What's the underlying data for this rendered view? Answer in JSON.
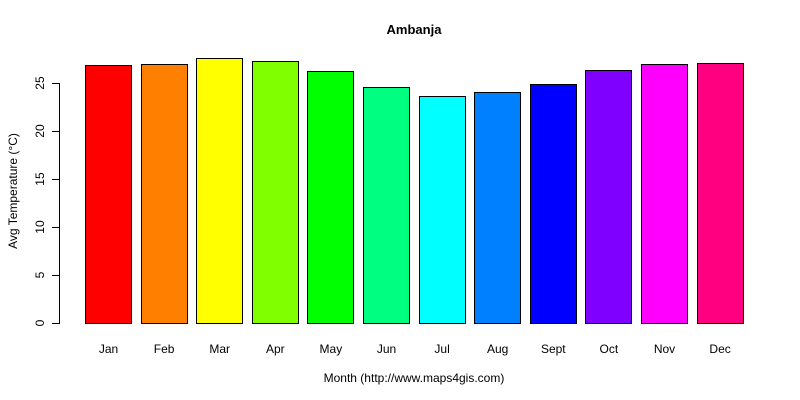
{
  "chart_data": {
    "type": "bar",
    "title": "Ambanja",
    "xlabel": "Month (http://www.maps4gis.com)",
    "ylabel": "Avg Temperature (°C)",
    "categories": [
      "Jan",
      "Feb",
      "Mar",
      "Apr",
      "May",
      "Jun",
      "Jul",
      "Aug",
      "Sept",
      "Oct",
      "Nov",
      "Dec"
    ],
    "values": [
      26.9,
      27.0,
      27.6,
      27.3,
      26.3,
      24.6,
      23.6,
      24.1,
      24.9,
      26.4,
      27.0,
      27.1
    ],
    "colors": [
      "#FF0000",
      "#FF8000",
      "#FFFF00",
      "#80FF00",
      "#00FF00",
      "#00FF80",
      "#00FFFF",
      "#0080FF",
      "#0000FF",
      "#8000FF",
      "#FF00FF",
      "#FF0080"
    ],
    "yticks": [
      0,
      5,
      10,
      15,
      20,
      25
    ],
    "ylim": [
      0,
      27.6
    ],
    "grid": false,
    "legend": null
  }
}
